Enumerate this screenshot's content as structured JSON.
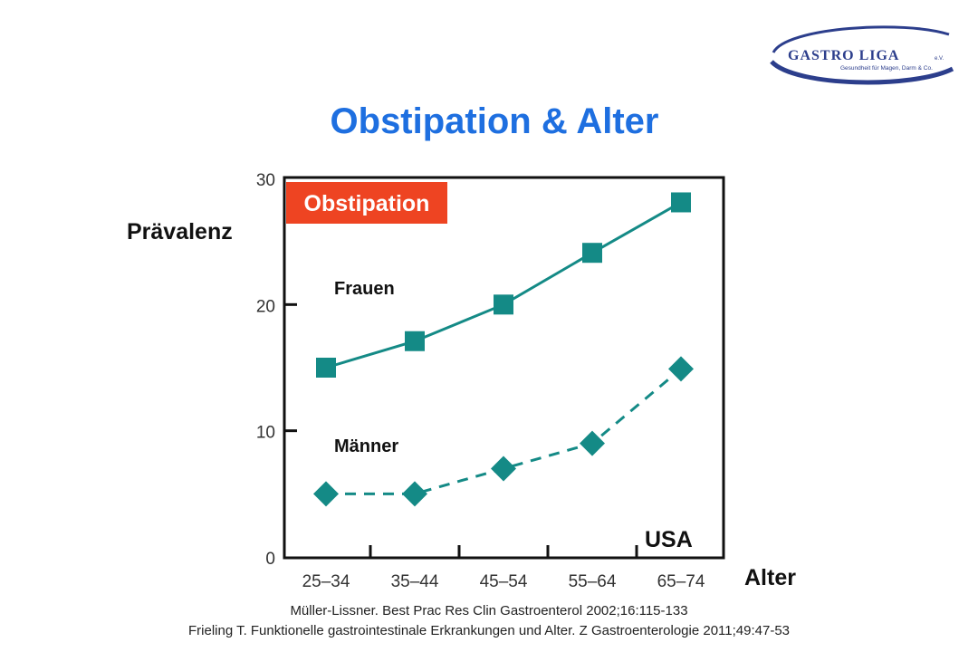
{
  "slide": {
    "title": "Obstipation & Alter",
    "ylabel": "Prävalenz",
    "xlabel": "Alter"
  },
  "logo": {
    "name": "GASTRO LIGA",
    "suffix": "e.V.",
    "tagline": "Gesundheit für Magen, Darm & Co.",
    "color": "#2c3e8c"
  },
  "references": [
    "Müller-Lissner. Best Prac Res Clin Gastroenterol 2002;16:115-133",
    "Frieling T. Funktionelle gastrointestinale Erkrankungen und Alter. Z Gastroenterologie 2011;49:47-53"
  ],
  "chart_data": {
    "type": "line",
    "title": "Obstipation",
    "title_badge_color": "#ee4422",
    "annotation": "USA",
    "categories": [
      "25–34",
      "35–44",
      "45–54",
      "55–64",
      "65–74"
    ],
    "ylim": [
      0,
      30
    ],
    "yticks": [
      0,
      10,
      20,
      30
    ],
    "grid": false,
    "series": [
      {
        "name": "Frauen",
        "values": [
          15,
          17.1,
          20,
          24.1,
          28.1
        ],
        "marker": "square",
        "line": "solid",
        "color": "#148a86"
      },
      {
        "name": "Männer",
        "values": [
          5,
          5,
          7,
          9,
          14.9
        ],
        "marker": "diamond",
        "line": "dashed",
        "color": "#148a86"
      }
    ]
  }
}
